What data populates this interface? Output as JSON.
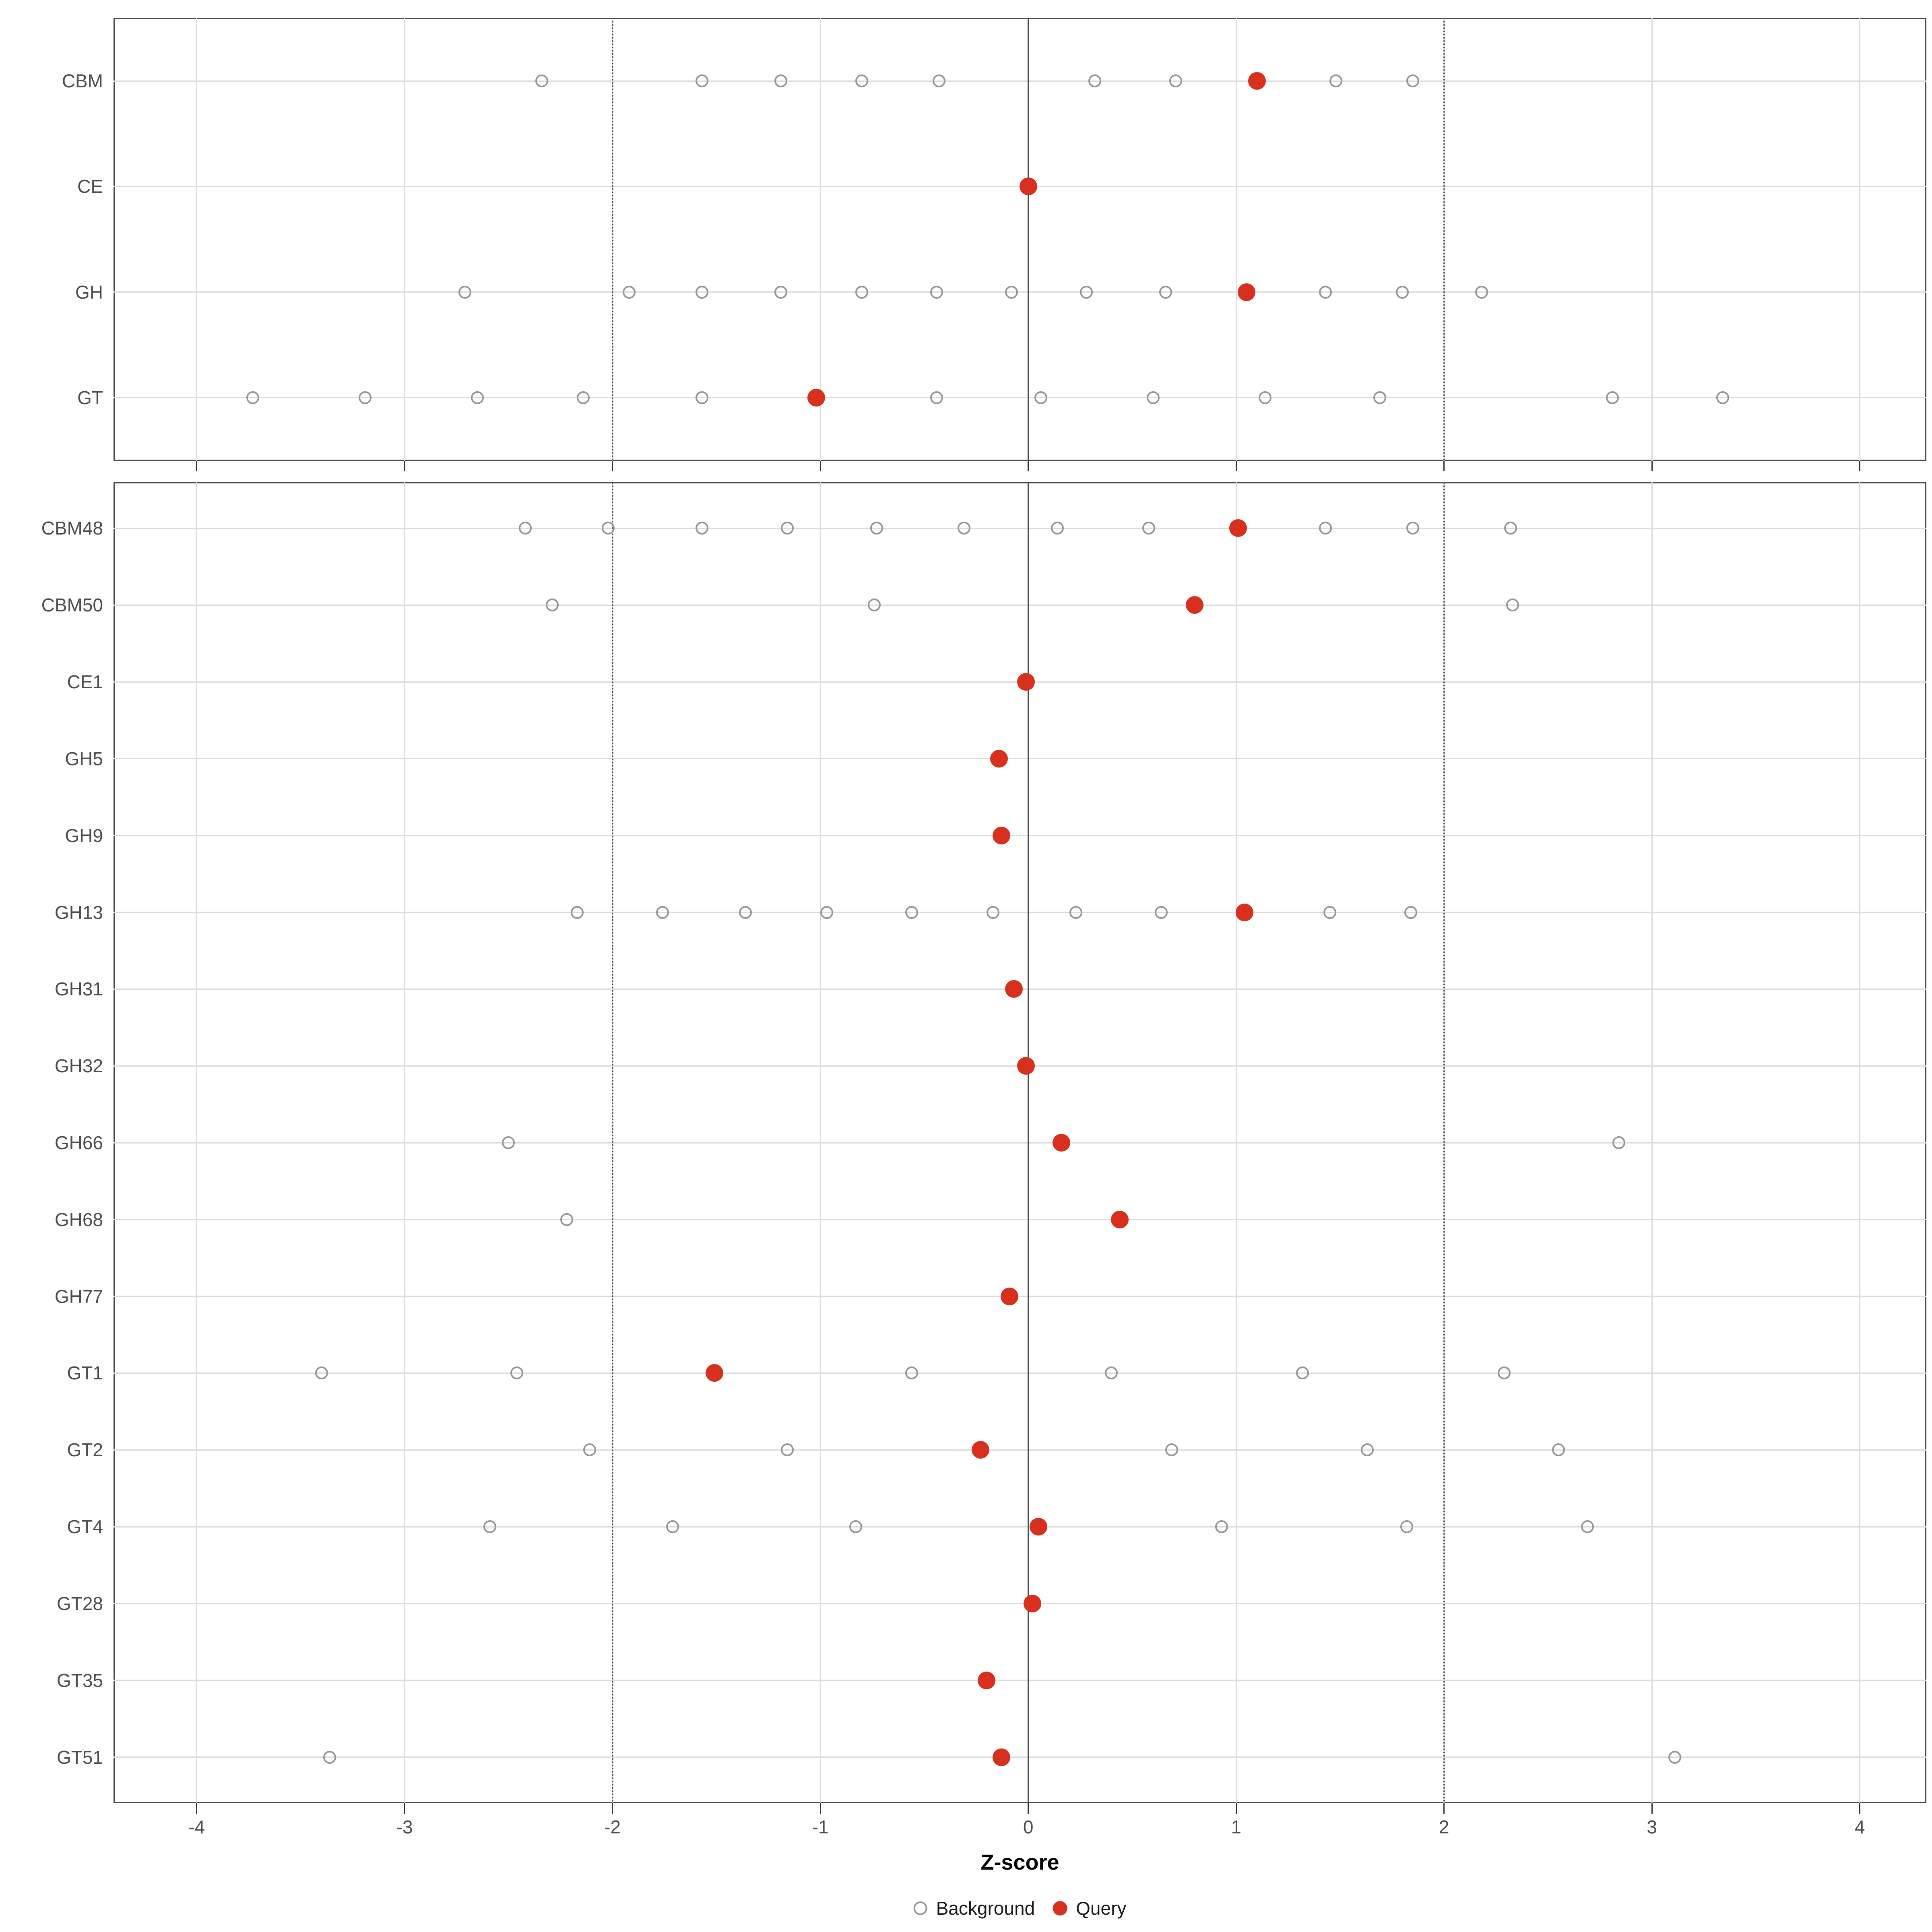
{
  "chart_data": {
    "type": "scatter",
    "title": "",
    "xlabel": "Z-score",
    "x_axis": {
      "ticks": [
        -4,
        -3,
        -2,
        -1,
        0,
        1,
        2,
        3,
        4
      ],
      "domain": [
        -4.4,
        4.32
      ]
    },
    "reference_lines": {
      "solid": [
        0
      ],
      "dotted": [
        -2,
        2
      ]
    },
    "grid": "major-on",
    "legend_position": "bottom",
    "legend": [
      {
        "label": "Background",
        "marker": "open-circle",
        "color": "#969696"
      },
      {
        "label": "Query",
        "marker": "filled-circle",
        "color": "#d7301f"
      }
    ],
    "colors": {
      "query": "#d7301f",
      "background_stroke": "#969696",
      "grid": "#dbdbdb",
      "reference": "#4d4d4d",
      "text": "#4d4d4d",
      "panel_border": "#4d4d4d"
    },
    "panels": [
      {
        "rows": [
          {
            "label": "CBM",
            "query": 1.1,
            "background": [
              -2.34,
              -1.57,
              -1.19,
              -0.8,
              -0.43,
              0.32,
              0.71,
              1.48,
              1.85
            ]
          },
          {
            "label": "CE",
            "query": 0.0,
            "background": []
          },
          {
            "label": "GH",
            "query": 1.05,
            "background": [
              -2.71,
              -1.92,
              -1.57,
              -1.19,
              -0.8,
              -0.44,
              -0.08,
              0.28,
              0.66,
              1.43,
              1.8,
              2.18
            ]
          },
          {
            "label": "GT",
            "query": -1.02,
            "background": [
              -3.73,
              -3.19,
              -2.65,
              -2.14,
              -1.57,
              -0.44,
              0.06,
              0.6,
              1.14,
              1.69,
              2.81,
              3.34
            ]
          }
        ]
      },
      {
        "rows": [
          {
            "label": "CBM48",
            "query": 1.01,
            "background": [
              -2.42,
              -2.02,
              -1.57,
              -1.16,
              -0.73,
              -0.31,
              0.14,
              0.58,
              1.43,
              1.85,
              2.32
            ]
          },
          {
            "label": "CBM50",
            "query": 0.8,
            "background": [
              -2.29,
              -0.74,
              2.33
            ]
          },
          {
            "label": "CE1",
            "query": -0.01,
            "background": []
          },
          {
            "label": "GH5",
            "query": -0.14,
            "background": []
          },
          {
            "label": "GH9",
            "query": -0.13,
            "background": []
          },
          {
            "label": "GH13",
            "query": 1.04,
            "background": [
              -2.17,
              -1.76,
              -1.36,
              -0.97,
              -0.56,
              -0.17,
              0.23,
              0.64,
              1.45,
              1.84
            ]
          },
          {
            "label": "GH31",
            "query": -0.07,
            "background": []
          },
          {
            "label": "GH32",
            "query": -0.01,
            "background": []
          },
          {
            "label": "GH66",
            "query": 0.16,
            "background": [
              -2.5,
              2.84
            ]
          },
          {
            "label": "GH68",
            "query": 0.44,
            "background": [
              -2.22
            ]
          },
          {
            "label": "GH77",
            "query": -0.09,
            "background": []
          },
          {
            "label": "GT1",
            "query": -1.51,
            "background": [
              -3.4,
              -2.46,
              -0.56,
              0.4,
              1.32,
              2.29
            ]
          },
          {
            "label": "GT2",
            "query": -0.23,
            "background": [
              -2.11,
              -1.16,
              0.69,
              1.63,
              2.55
            ]
          },
          {
            "label": "GT4",
            "query": 0.05,
            "background": [
              -2.59,
              -1.71,
              -0.83,
              0.93,
              1.82,
              2.69
            ]
          },
          {
            "label": "GT28",
            "query": 0.02,
            "background": []
          },
          {
            "label": "GT35",
            "query": -0.2,
            "background": []
          },
          {
            "label": "GT51",
            "query": -0.13,
            "background": [
              -3.36,
              3.11
            ]
          }
        ]
      }
    ]
  }
}
